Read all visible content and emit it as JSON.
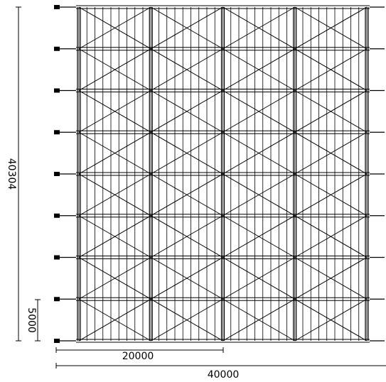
{
  "dimensions": {
    "total_height": "40304",
    "bay_height": "5000",
    "half_width": "20000",
    "total_width": "40000"
  },
  "structure": {
    "bay_count": 8,
    "post_columns": 4,
    "rails_per_bay": 36,
    "line_color": "#000000"
  }
}
